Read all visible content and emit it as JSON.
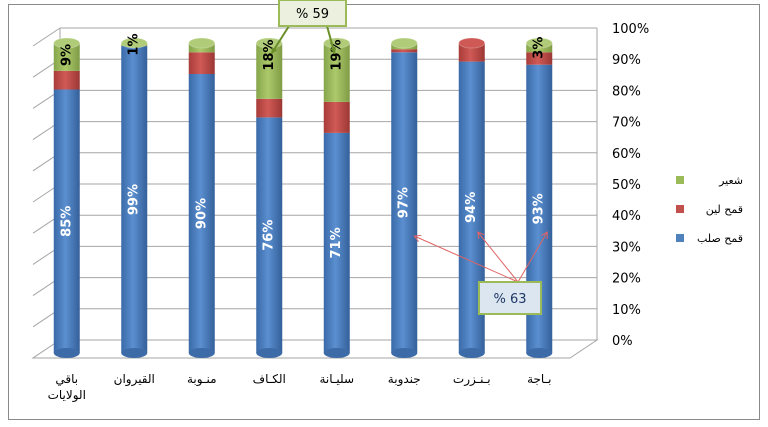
{
  "chart_data": {
    "type": "bar",
    "stacked": true,
    "categories": [
      "باقي الولايات",
      "القيروان",
      "منـوبة",
      "الكـاف",
      "سليـانة",
      "جندوبة",
      "بـنـزرت",
      "بـاجة"
    ],
    "series": [
      {
        "name": "قمح صلب",
        "color": "#4f81bd",
        "values": [
          85,
          99,
          90,
          76,
          71,
          97,
          94,
          93
        ]
      },
      {
        "name": "قمح لين",
        "color": "#c0504d",
        "values": [
          6,
          0,
          7,
          6,
          10,
          1,
          6,
          4
        ]
      },
      {
        "name": "شعير",
        "color": "#9bbb59",
        "values": [
          9,
          1,
          3,
          18,
          19,
          2,
          0,
          3
        ]
      }
    ],
    "data_labels": [
      {
        "category": 0,
        "series": 0,
        "text": "85%"
      },
      {
        "category": 0,
        "series": 2,
        "text": "9%"
      },
      {
        "category": 1,
        "series": 0,
        "text": "99%"
      },
      {
        "category": 1,
        "series": 2,
        "text": "1%"
      },
      {
        "category": 2,
        "series": 0,
        "text": "90%"
      },
      {
        "category": 3,
        "series": 0,
        "text": "76%"
      },
      {
        "category": 3,
        "series": 2,
        "text": "18%"
      },
      {
        "category": 4,
        "series": 0,
        "text": "71%"
      },
      {
        "category": 4,
        "series": 2,
        "text": "19%"
      },
      {
        "category": 5,
        "series": 0,
        "text": "97%"
      },
      {
        "category": 6,
        "series": 0,
        "text": "94%"
      },
      {
        "category": 7,
        "series": 0,
        "text": "93%"
      },
      {
        "category": 7,
        "series": 2,
        "text": "3%"
      }
    ],
    "y_ticks": [
      "0%",
      "10%",
      "20%",
      "30%",
      "40%",
      "50%",
      "60%",
      "70%",
      "80%",
      "90%",
      "100%"
    ],
    "ylim": [
      0,
      100
    ],
    "y_axis_side": "right",
    "legend_placement": "right",
    "annotations": [
      {
        "text": "% 59",
        "box_color": "#9bbb59",
        "fill": "#ebf1de",
        "targets": [
          3,
          4
        ]
      },
      {
        "text": "% 63",
        "box_color": "#9bbb59",
        "fill": "#dce6f1",
        "targets": [
          5,
          6,
          7
        ]
      }
    ],
    "grid": true
  }
}
